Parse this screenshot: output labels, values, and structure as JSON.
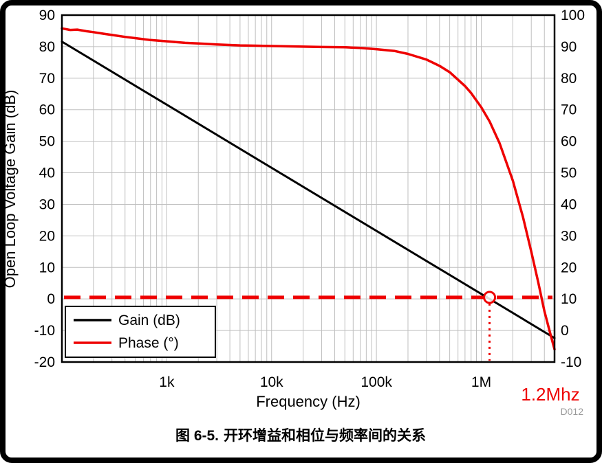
{
  "figure": {
    "caption_prefix": "图 6-5.",
    "caption_text": "开环增益和相位与频率间的关系",
    "watermark": "D012"
  },
  "colors": {
    "gain_line": "#000000",
    "phase_line": "#ee0000",
    "annotation_red": "#ee0000",
    "grid": "#bfbfbf",
    "watermark_gray": "#9a9a9a"
  },
  "chart_data": {
    "type": "line",
    "title": "",
    "xlabel": "Frequency (Hz)",
    "ylabel_left": "Open Loop Voltage Gain (dB)",
    "x_scale": "log",
    "x_range": [
      100,
      5000000
    ],
    "x_ticks": [
      {
        "f": 1000,
        "label": "1k"
      },
      {
        "f": 10000,
        "label": "10k"
      },
      {
        "f": 100000,
        "label": "100k"
      },
      {
        "f": 1000000,
        "label": "1M"
      }
    ],
    "y_left_range": [
      -20,
      90
    ],
    "y_left_ticks": [
      90,
      80,
      70,
      60,
      50,
      40,
      30,
      20,
      10,
      0,
      -10,
      -20
    ],
    "y_right_range": [
      -10,
      100
    ],
    "y_right_ticks": [
      100,
      90,
      80,
      70,
      60,
      50,
      40,
      30,
      20,
      10,
      0,
      -10
    ],
    "grid": true,
    "legend_position": "lower-left",
    "series": [
      {
        "name": "Gain (dB)",
        "axis": "left",
        "color": "#000000",
        "points": [
          [
            100,
            81.6
          ],
          [
            5000000,
            -12.4
          ]
        ]
      },
      {
        "name": "Phase (°)",
        "axis": "right",
        "color": "#ee0000",
        "points": [
          [
            100,
            95.8
          ],
          [
            120,
            95.3
          ],
          [
            140,
            95.4
          ],
          [
            170,
            94.9
          ],
          [
            200,
            94.6
          ],
          [
            250,
            94.1
          ],
          [
            300,
            93.7
          ],
          [
            400,
            93.1
          ],
          [
            500,
            92.7
          ],
          [
            700,
            92.1
          ],
          [
            1000,
            91.7
          ],
          [
            1500,
            91.2
          ],
          [
            2000,
            91.0
          ],
          [
            3000,
            90.7
          ],
          [
            5000,
            90.4
          ],
          [
            7000,
            90.3
          ],
          [
            10000,
            90.2
          ],
          [
            20000,
            90.0
          ],
          [
            30000,
            89.9
          ],
          [
            50000,
            89.8
          ],
          [
            70000,
            89.6
          ],
          [
            100000,
            89.2
          ],
          [
            150000,
            88.6
          ],
          [
            200000,
            87.7
          ],
          [
            300000,
            85.9
          ],
          [
            400000,
            83.9
          ],
          [
            500000,
            81.9
          ],
          [
            700000,
            77.5
          ],
          [
            800000,
            75.3
          ],
          [
            1000000,
            70.8
          ],
          [
            1200000,
            66.3
          ],
          [
            1500000,
            59.3
          ],
          [
            2000000,
            47.5
          ],
          [
            2500000,
            36.0
          ],
          [
            3000000,
            25.0
          ],
          [
            3500000,
            15.2
          ],
          [
            4000000,
            6.2
          ],
          [
            4500000,
            -0.3
          ],
          [
            5000000,
            -6.0
          ]
        ]
      }
    ],
    "annotations": {
      "color": "#ee0000",
      "unity_gain_line": {
        "axis": "left",
        "value": 0.5,
        "style": "dashed"
      },
      "crossover_marker": {
        "f": 1200000,
        "axis_value": 0.5
      },
      "crossover_label": "1.2Mhz"
    }
  }
}
